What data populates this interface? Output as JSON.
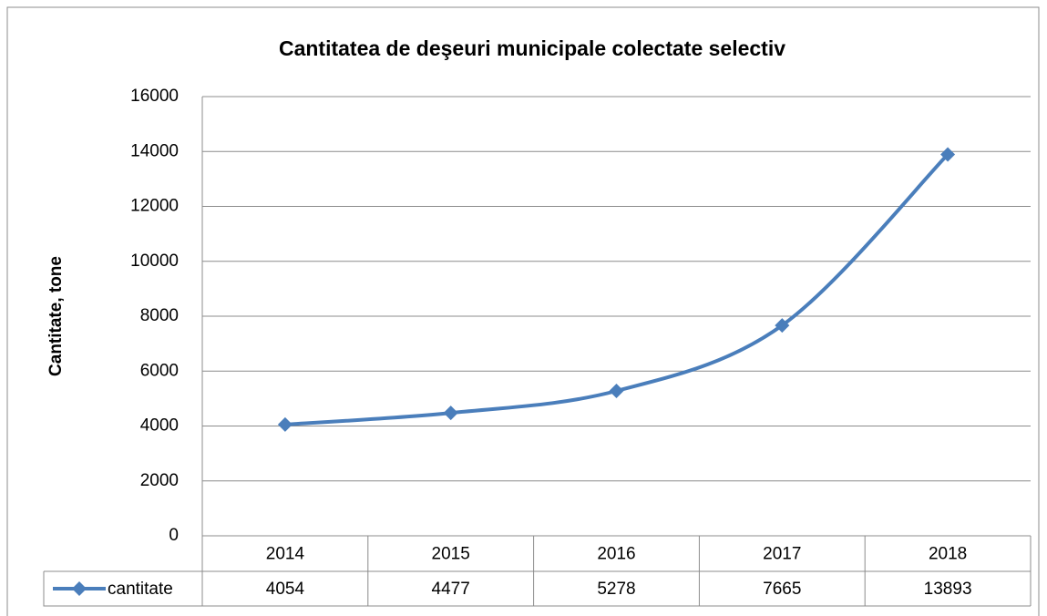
{
  "chart_data": {
    "type": "line",
    "title": "Cantitatea de deşeuri municipale colectate selectiv",
    "y_label": "Cantitate, tone",
    "categories": [
      "2014",
      "2015",
      "2016",
      "2017",
      "2018"
    ],
    "series": [
      {
        "name": "cantitate",
        "color": "#4a7ebb",
        "values": [
          4054,
          4477,
          5278,
          7665,
          13893
        ]
      }
    ],
    "ylim": [
      0,
      16000
    ],
    "yticks": [
      0,
      2000,
      4000,
      6000,
      8000,
      10000,
      12000,
      14000,
      16000
    ],
    "grid": true
  }
}
